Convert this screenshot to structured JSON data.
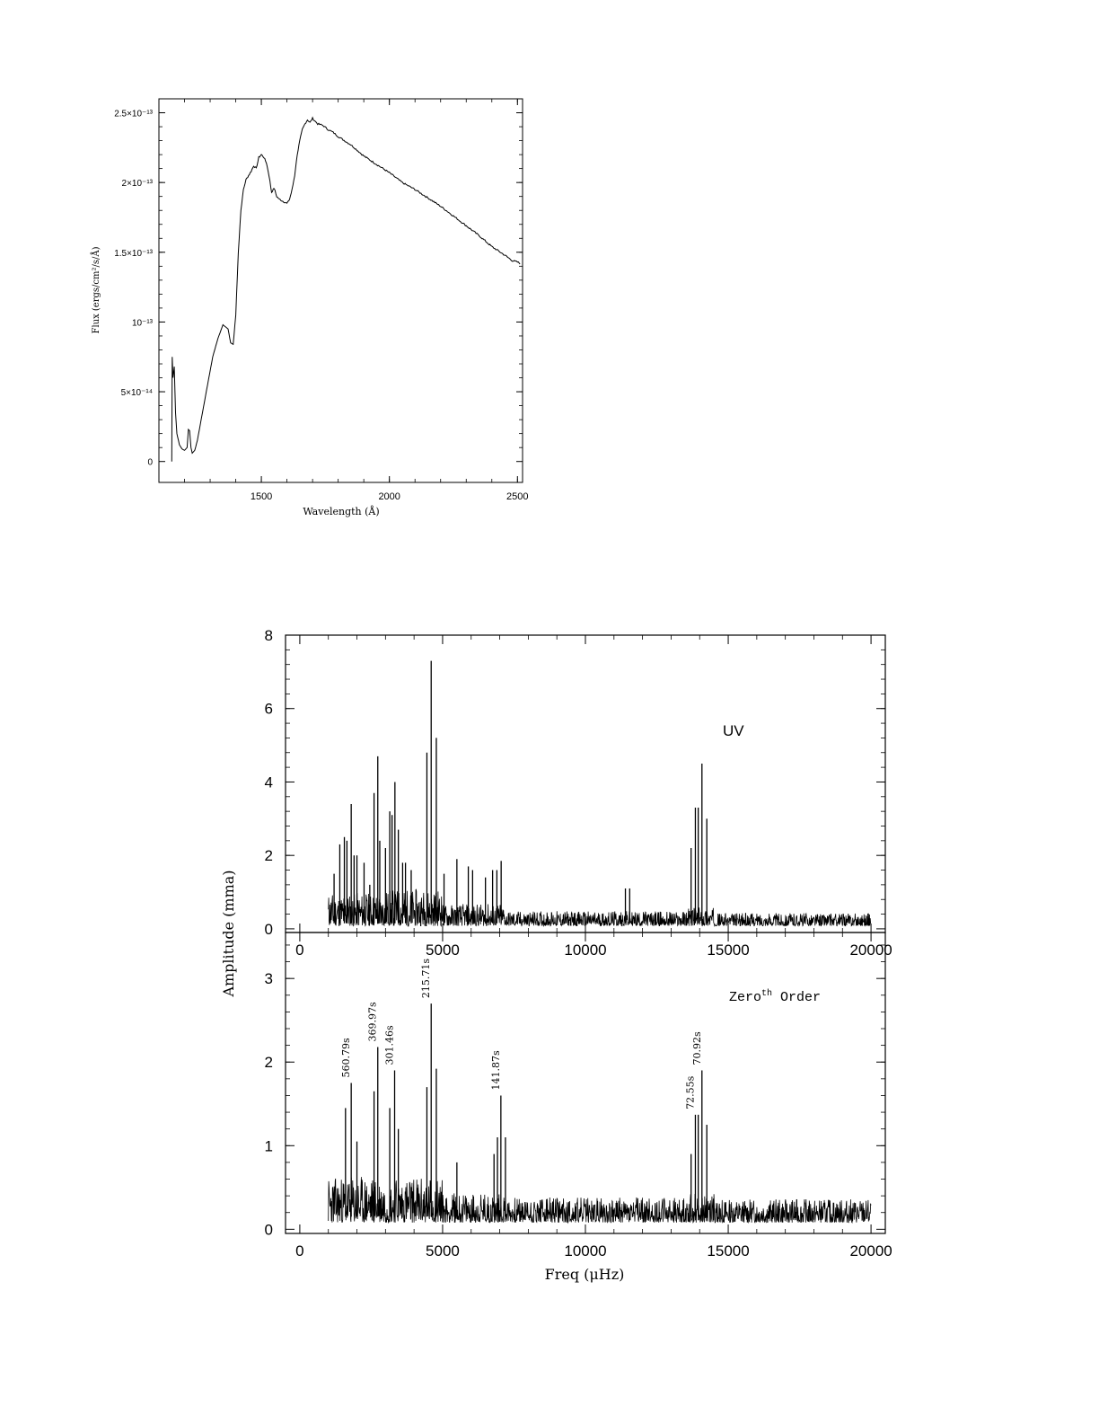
{
  "chart_data": [
    {
      "type": "line",
      "xlabel": "Wavelength (Å)",
      "ylabel": "Flux (ergs/cm²/s/Å)",
      "xlim": [
        1100,
        2520
      ],
      "ylim": [
        -1.5e-14,
        2.6e-13
      ],
      "x_ticks": [
        {
          "value": 1500,
          "label": "1500"
        },
        {
          "value": 2000,
          "label": "2000"
        },
        {
          "value": 2500,
          "label": "2500"
        }
      ],
      "y_ticks": [
        {
          "value": 0,
          "label": "0"
        },
        {
          "value": 5e-14,
          "label": "5×10⁻¹⁴"
        },
        {
          "value": 1e-13,
          "label": "10⁻¹³"
        },
        {
          "value": 1.5e-13,
          "label": "1.5×10⁻¹³"
        },
        {
          "value": 2e-13,
          "label": "2×10⁻¹³"
        },
        {
          "value": 2.5e-13,
          "label": "2.5×10⁻¹³"
        }
      ],
      "grid": false,
      "series": [
        {
          "x": [
            1150,
            1152,
            1155,
            1160,
            1165,
            1170,
            1180,
            1190,
            1200,
            1210,
            1215,
            1220,
            1225,
            1230,
            1240,
            1250,
            1270,
            1290,
            1310,
            1330,
            1350,
            1370,
            1380,
            1390,
            1400,
            1410,
            1420,
            1430,
            1440,
            1450,
            1460,
            1470,
            1480,
            1490,
            1500,
            1510,
            1520,
            1530,
            1540,
            1550,
            1560,
            1570,
            1580,
            1590,
            1600,
            1610,
            1620,
            1630,
            1640,
            1650,
            1660,
            1670,
            1680,
            1690,
            1700,
            1720,
            1740,
            1760,
            1780,
            1800,
            1850,
            1900,
            1950,
            2000,
            2050,
            2100,
            2150,
            2200,
            2250,
            2300,
            2350,
            2400,
            2450,
            2480,
            2500,
            2510
          ],
          "y": [
            0,
            7.5e-14,
            6e-14,
            6.8e-14,
            3.5e-14,
            2e-14,
            1.2e-14,
            9e-15,
            8e-15,
            1e-14,
            2.3e-14,
            2.2e-14,
            1e-14,
            6e-15,
            8e-15,
            1.5e-14,
            3.5e-14,
            5.5e-14,
            7.5e-14,
            8.8e-14,
            9.8e-14,
            9.5e-14,
            8.5e-14,
            8.4e-14,
            1.05e-13,
            1.5e-13,
            1.8e-13,
            1.95e-13,
            2.02e-13,
            2.05e-13,
            2.08e-13,
            2.12e-13,
            2.1e-13,
            2.18e-13,
            2.2e-13,
            2.18e-13,
            2.14e-13,
            2.05e-13,
            1.93e-13,
            1.96e-13,
            1.9e-13,
            1.88e-13,
            1.87e-13,
            1.86e-13,
            1.85e-13,
            1.88e-13,
            1.95e-13,
            2.05e-13,
            2.2e-13,
            2.3e-13,
            2.38e-13,
            2.42e-13,
            2.45e-13,
            2.43e-13,
            2.46e-13,
            2.42e-13,
            2.41e-13,
            2.38e-13,
            2.36e-13,
            2.33e-13,
            2.27e-13,
            2.19e-13,
            2.13e-13,
            2.07e-13,
            2e-13,
            1.95e-13,
            1.89e-13,
            1.83e-13,
            1.76e-13,
            1.69e-13,
            1.62e-13,
            1.54e-13,
            1.48e-13,
            1.44e-13,
            1.43e-13,
            1.42e-13
          ]
        }
      ]
    },
    {
      "type": "line",
      "title": "UV",
      "ylabel": "Amplitude (mma)",
      "xlim": [
        -500,
        20500
      ],
      "ylim": [
        -0.1,
        8
      ],
      "x_ticks": [
        {
          "value": 0,
          "label": "0"
        },
        {
          "value": 5000,
          "label": "5000"
        },
        {
          "value": 10000,
          "label": "10000"
        },
        {
          "value": 15000,
          "label": "15000"
        },
        {
          "value": 20000,
          "label": "20000"
        }
      ],
      "y_ticks": [
        {
          "value": 0,
          "label": "0"
        },
        {
          "value": 2,
          "label": "2"
        },
        {
          "value": 4,
          "label": "4"
        },
        {
          "value": 6,
          "label": "6"
        },
        {
          "value": 8,
          "label": "8"
        }
      ],
      "grid": false,
      "x_range": [
        1000,
        20000
      ],
      "noise_segments": [
        {
          "from": 1000,
          "to": 3000,
          "level": 0.9
        },
        {
          "from": 3000,
          "to": 5000,
          "level": 1.0
        },
        {
          "from": 5000,
          "to": 7200,
          "level": 0.6
        },
        {
          "from": 7200,
          "to": 13500,
          "level": 0.4
        },
        {
          "from": 13500,
          "to": 14500,
          "level": 0.5
        },
        {
          "from": 14500,
          "to": 20000,
          "level": 0.35
        }
      ],
      "peaks": [
        {
          "x": 1200,
          "y": 1.5
        },
        {
          "x": 1400,
          "y": 2.3
        },
        {
          "x": 1560,
          "y": 2.5
        },
        {
          "x": 1650,
          "y": 2.4
        },
        {
          "x": 1800,
          "y": 3.4
        },
        {
          "x": 1900,
          "y": 2.0
        },
        {
          "x": 2000,
          "y": 2.0
        },
        {
          "x": 2250,
          "y": 1.8
        },
        {
          "x": 2450,
          "y": 1.2
        },
        {
          "x": 2600,
          "y": 3.7
        },
        {
          "x": 2730,
          "y": 4.7
        },
        {
          "x": 2800,
          "y": 2.4
        },
        {
          "x": 3000,
          "y": 2.2
        },
        {
          "x": 3150,
          "y": 3.2
        },
        {
          "x": 3230,
          "y": 3.1
        },
        {
          "x": 3330,
          "y": 4.0
        },
        {
          "x": 3450,
          "y": 2.7
        },
        {
          "x": 3600,
          "y": 1.8
        },
        {
          "x": 3700,
          "y": 1.8
        },
        {
          "x": 3900,
          "y": 1.6
        },
        {
          "x": 4450,
          "y": 4.8
        },
        {
          "x": 4600,
          "y": 7.3
        },
        {
          "x": 4780,
          "y": 5.2
        },
        {
          "x": 5050,
          "y": 1.5
        },
        {
          "x": 5500,
          "y": 1.9
        },
        {
          "x": 5900,
          "y": 1.7
        },
        {
          "x": 6050,
          "y": 1.6
        },
        {
          "x": 6500,
          "y": 1.4
        },
        {
          "x": 6750,
          "y": 1.6
        },
        {
          "x": 6900,
          "y": 1.6
        },
        {
          "x": 7050,
          "y": 1.85
        },
        {
          "x": 11400,
          "y": 1.1
        },
        {
          "x": 11550,
          "y": 1.1
        },
        {
          "x": 13700,
          "y": 2.2
        },
        {
          "x": 13850,
          "y": 3.3
        },
        {
          "x": 13950,
          "y": 3.3
        },
        {
          "x": 14080,
          "y": 4.5
        },
        {
          "x": 14250,
          "y": 3.0
        }
      ]
    },
    {
      "type": "line",
      "title": "Zeroth Order",
      "xlabel": "Freq (μHz)",
      "ylabel": "Amplitude (mma)",
      "xlim": [
        -500,
        20500
      ],
      "ylim": [
        -0.05,
        3.55
      ],
      "x_ticks": [
        {
          "value": 0,
          "label": "0"
        },
        {
          "value": 5000,
          "label": "5000"
        },
        {
          "value": 10000,
          "label": "10000"
        },
        {
          "value": 15000,
          "label": "15000"
        },
        {
          "value": 20000,
          "label": "20000"
        }
      ],
      "y_ticks": [
        {
          "value": 0,
          "label": "0"
        },
        {
          "value": 1,
          "label": "1"
        },
        {
          "value": 2,
          "label": "2"
        },
        {
          "value": 3,
          "label": "3"
        }
      ],
      "grid": false,
      "x_range": [
        1000,
        20000
      ],
      "noise_segments": [
        {
          "from": 1000,
          "to": 3000,
          "level": 0.55
        },
        {
          "from": 3000,
          "to": 5000,
          "level": 0.55
        },
        {
          "from": 5000,
          "to": 7200,
          "level": 0.35
        },
        {
          "from": 7200,
          "to": 13500,
          "level": 0.3
        },
        {
          "from": 13500,
          "to": 14500,
          "level": 0.35
        },
        {
          "from": 14500,
          "to": 20000,
          "level": 0.28
        }
      ],
      "peaks": [
        {
          "x": 1600,
          "y": 1.45
        },
        {
          "x": 1800,
          "y": 1.75
        },
        {
          "x": 2000,
          "y": 1.05
        },
        {
          "x": 2600,
          "y": 1.65
        },
        {
          "x": 2730,
          "y": 2.18
        },
        {
          "x": 3150,
          "y": 1.45
        },
        {
          "x": 3320,
          "y": 1.9
        },
        {
          "x": 3450,
          "y": 1.2
        },
        {
          "x": 4450,
          "y": 1.7
        },
        {
          "x": 4600,
          "y": 2.7
        },
        {
          "x": 4780,
          "y": 1.92
        },
        {
          "x": 5500,
          "y": 0.8
        },
        {
          "x": 6800,
          "y": 0.9
        },
        {
          "x": 6920,
          "y": 1.1
        },
        {
          "x": 7040,
          "y": 1.6
        },
        {
          "x": 7200,
          "y": 1.1
        },
        {
          "x": 13700,
          "y": 0.9
        },
        {
          "x": 13850,
          "y": 1.37
        },
        {
          "x": 13950,
          "y": 1.37
        },
        {
          "x": 14080,
          "y": 1.9
        },
        {
          "x": 14250,
          "y": 1.25
        }
      ],
      "annotations": [
        {
          "x": 1800,
          "y": 1.75,
          "label": "560.79s"
        },
        {
          "x": 2730,
          "y": 2.18,
          "label": "369.97s"
        },
        {
          "x": 3320,
          "y": 1.9,
          "label": "301.46s"
        },
        {
          "x": 4600,
          "y": 2.7,
          "label": "215.71s"
        },
        {
          "x": 7040,
          "y": 1.6,
          "label": "141.87s"
        },
        {
          "x": 13850,
          "y": 1.37,
          "label": "72.55s"
        },
        {
          "x": 14080,
          "y": 1.9,
          "label": "70.92s"
        }
      ]
    }
  ]
}
